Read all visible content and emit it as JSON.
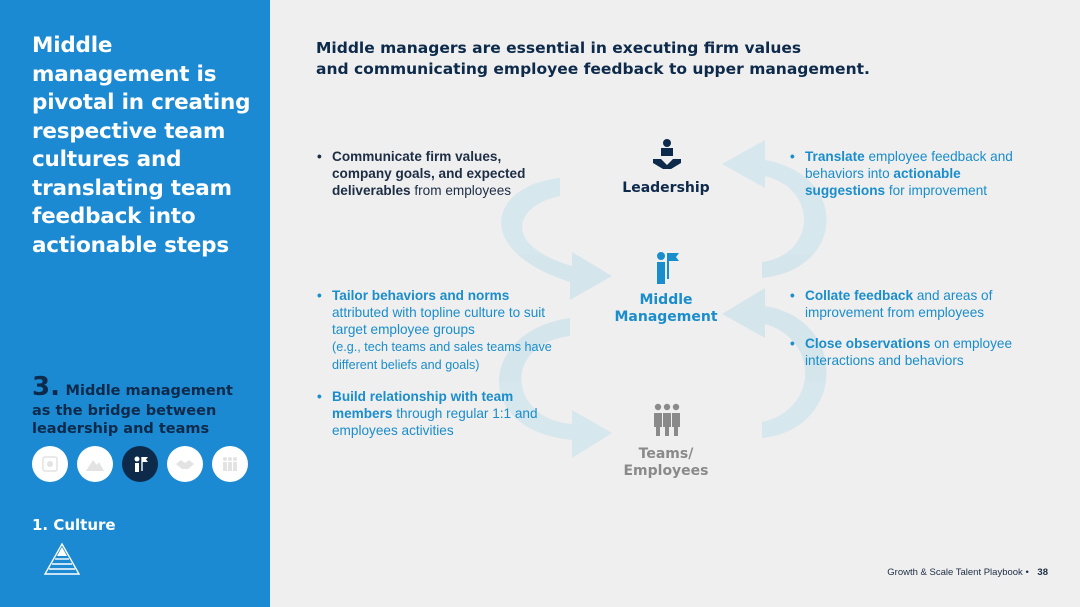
{
  "sidebar": {
    "title": "Middle\nmanagement is\npivotal in creating\nrespective team\ncultures and\ntranslating team\nfeedback into\nactionable steps",
    "section_number": "3.",
    "section_text_a": "Middle management",
    "section_text_b": "as the bridge between leadership and teams",
    "circle_icons": [
      "badge-icon",
      "mountain-icon",
      "manager-flag-icon",
      "handshake-icon",
      "group-icon"
    ],
    "active_circle": 2,
    "culture_label": "1. Culture"
  },
  "headline": "Middle managers are essential in executing firm values\nand communicating employee feedback to upper management.",
  "left_top": {
    "b1_bold": "Communicate firm values, company goals, and expected deliverables",
    "b1_rest": " from employees"
  },
  "left_bottom": {
    "b1_bold": "Tailor behaviors and norms",
    "b1_rest": " attributed with topline culture to suit target employee groups",
    "b1_small": "(e.g., tech teams and sales teams have different beliefs and goals)",
    "b2_bold": "Build relationship with team members",
    "b2_rest": " through regular 1:1 and employees activities"
  },
  "right_top": {
    "b1_bold1": "Translate",
    "b1_mid": " employee feedback and behaviors into ",
    "b1_bold2": "actionable suggestions",
    "b1_rest": " for improvement"
  },
  "right_bottom": {
    "b1_bold": "Collate feedback",
    "b1_rest": " and areas of improvement from employees",
    "b2_bold": "Close observations",
    "b2_rest": " on employee interactions and behaviors"
  },
  "nodes": {
    "leadership": "Leadership",
    "middle": "Middle\nManagement",
    "teams": "Teams/\nEmployees"
  },
  "colors": {
    "sidebar": "#1b8ad3",
    "navy": "#0d2a4a",
    "accent_blue": "#1a8dcc",
    "arrow_fill": "#d3e5ec",
    "grey": "#8a8a8a"
  },
  "footer": {
    "text": "Growth & Scale Talent Playbook",
    "page": "38"
  }
}
